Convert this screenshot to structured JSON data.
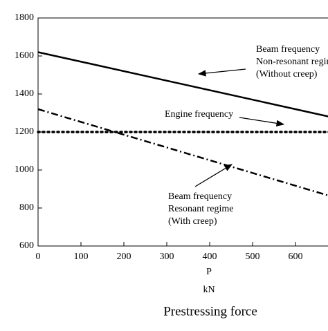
{
  "chart_data": {
    "type": "line",
    "x_label": "P",
    "x_unit": "kN",
    "x_title": "Prestressing force",
    "xlim": [
      0,
      700
    ],
    "xticks": [
      0,
      100,
      200,
      300,
      400,
      500,
      600
    ],
    "ylim": [
      600,
      1800
    ],
    "yticks": [
      600,
      800,
      1000,
      1200,
      1400,
      1600,
      1800
    ],
    "series": [
      {
        "name": "Beam frequency non-resonant",
        "color": "#000000",
        "style": "solid",
        "x": [
          0,
          700
        ],
        "values": [
          1620,
          1270
        ]
      },
      {
        "name": "Engine frequency",
        "color": "#000000",
        "style": "dotted",
        "x": [
          0,
          700
        ],
        "values": [
          1200,
          1200
        ]
      },
      {
        "name": "Beam frequency resonant",
        "color": "#000000",
        "style": "dashdot",
        "x": [
          0,
          700
        ],
        "values": [
          1320,
          850
        ]
      }
    ],
    "annotations": [
      {
        "lines": [
          "Beam frequency",
          "Non-resonant regime",
          "(Without creep)"
        ]
      },
      {
        "lines": [
          "Engine frequency"
        ]
      },
      {
        "lines": [
          "Beam frequency",
          "Resonant regime",
          "(With creep)"
        ]
      }
    ]
  }
}
